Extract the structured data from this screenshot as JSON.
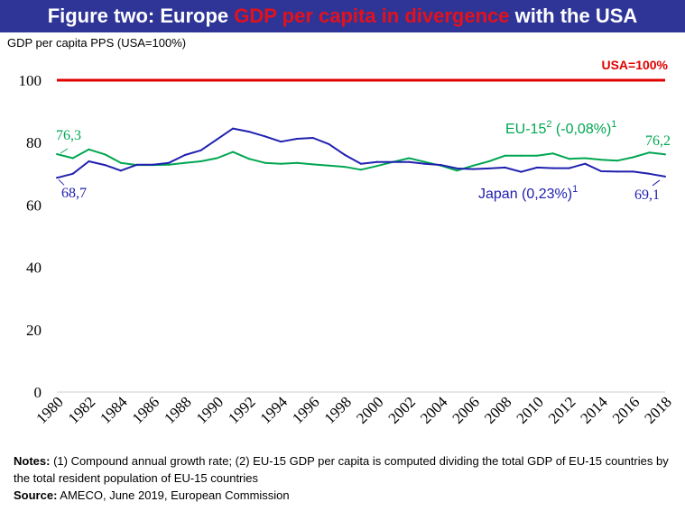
{
  "title": {
    "part1": "Figure two: Europe ",
    "part2": "GDP per capita in divergence",
    "part3": " with the USA"
  },
  "chart_data": {
    "type": "line",
    "ylabel": "GDP per capita PPS (USA=100%)",
    "ylim": [
      0,
      100
    ],
    "yticks": [
      "0",
      "20",
      "40",
      "60",
      "80",
      "100"
    ],
    "xticks": [
      "1980",
      "1982",
      "1984",
      "1986",
      "1988",
      "1990",
      "1992",
      "1994",
      "1996",
      "1998",
      "2000",
      "2002",
      "2004",
      "2006",
      "2008",
      "2010",
      "2012",
      "2014",
      "2016",
      "2018"
    ],
    "x": [
      1980,
      1981,
      1982,
      1983,
      1984,
      1985,
      1986,
      1987,
      1988,
      1989,
      1990,
      1991,
      1992,
      1993,
      1994,
      1995,
      1996,
      1997,
      1998,
      1999,
      2000,
      2001,
      2002,
      2003,
      2004,
      2005,
      2006,
      2007,
      2008,
      2009,
      2010,
      2011,
      2012,
      2013,
      2014,
      2015,
      2016,
      2017,
      2018
    ],
    "reference_line": {
      "value": 100,
      "label": "USA=100%",
      "color": "#e00000"
    },
    "series": [
      {
        "name": "EU-15",
        "label": "EU-15",
        "label_sup": "2",
        "label_rate": " (-0,08%)",
        "label_rate_sup": "1",
        "color": "#00a651",
        "start_label": "76,3",
        "end_label": "76,2",
        "values": [
          76.3,
          75.0,
          77.8,
          76.2,
          73.5,
          72.8,
          72.8,
          72.9,
          73.5,
          74.0,
          75.0,
          77.0,
          74.8,
          73.5,
          73.2,
          73.5,
          73.0,
          72.6,
          72.2,
          71.3,
          72.5,
          73.8,
          75.0,
          73.8,
          72.6,
          71.0,
          72.6,
          74.0,
          75.8,
          75.8,
          75.8,
          76.5,
          74.8,
          75.0,
          74.5,
          74.2,
          75.3,
          76.8,
          76.2
        ]
      },
      {
        "name": "Japan",
        "label": "Japan (0,23%)",
        "label_sup": "1",
        "color": "#2020b0",
        "start_label": "68,7",
        "end_label": "69,1",
        "values": [
          68.7,
          70.0,
          74.0,
          72.8,
          71.0,
          72.9,
          72.9,
          73.5,
          76.0,
          77.5,
          81.0,
          84.5,
          83.5,
          82.0,
          80.3,
          81.2,
          81.5,
          79.5,
          76.0,
          73.2,
          73.8,
          73.8,
          73.8,
          73.2,
          72.8,
          71.7,
          71.5,
          71.7,
          72.0,
          70.6,
          72.0,
          71.8,
          71.8,
          73.2,
          70.8,
          70.7,
          70.7,
          70.0,
          69.1
        ]
      }
    ]
  },
  "notes": {
    "notes_label": "Notes:",
    "notes_text": " (1) Compound annual growth rate; (2) EU-15 GDP per capita is computed dividing the total GDP of EU-15 countries by the total resident population of EU-15 countries",
    "source_label": "Source:",
    "source_text": " AMECO, June 2019, European Commission"
  }
}
